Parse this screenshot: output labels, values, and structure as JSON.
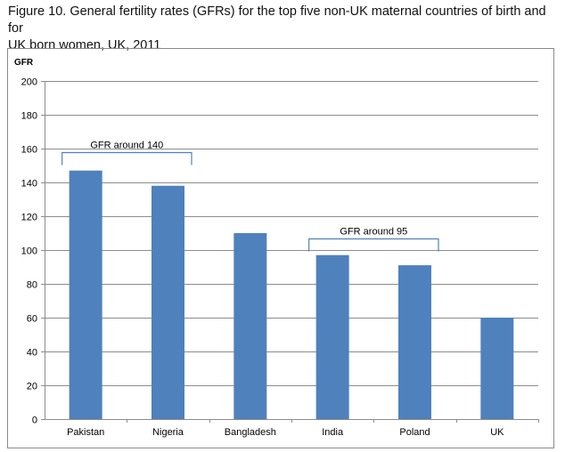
{
  "figure": {
    "title": "Figure 10. General fertility rates (GFRs) for the top five non-UK maternal countries of birth and for\nUK born women, UK, 2011"
  },
  "chart_data": {
    "type": "bar",
    "title": "",
    "xlabel": "",
    "ylabel": "GFR",
    "ylim": [
      0,
      200
    ],
    "yticks": [
      0,
      20,
      40,
      60,
      80,
      100,
      120,
      140,
      160,
      180,
      200
    ],
    "grid": true,
    "legend": "none",
    "categories": [
      "Pakistan",
      "Nigeria",
      "Bangladesh",
      "India",
      "Poland",
      "UK"
    ],
    "series": [
      {
        "values": [
          147,
          138,
          110,
          97,
          91,
          60
        ],
        "color": "#4f81bd"
      }
    ],
    "annotations": [
      {
        "text": "GFR around 140",
        "from": "Pakistan",
        "to": "Nigeria",
        "y": 158
      },
      {
        "text": "GFR around 95",
        "from": "India",
        "to": "Poland",
        "y": 107
      }
    ]
  }
}
